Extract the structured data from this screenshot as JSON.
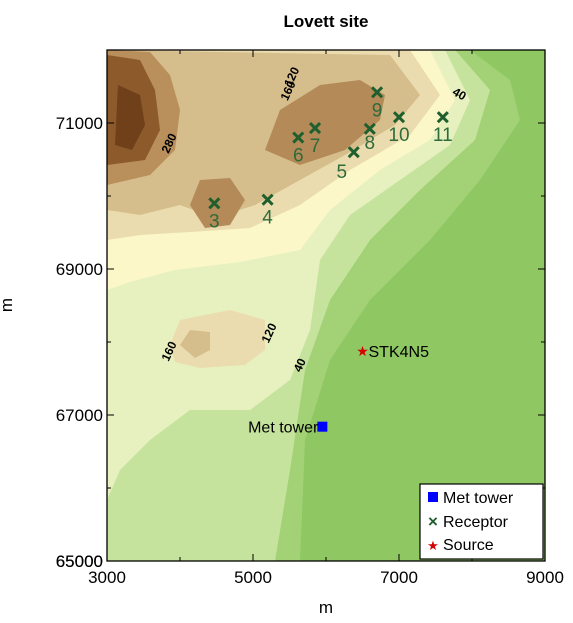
{
  "chart_data": {
    "type": "contour",
    "title": "Lovett site",
    "xlabel": "m",
    "ylabel": "m",
    "xlim": [
      3000,
      9000
    ],
    "ylim": [
      65000,
      72000
    ],
    "xticks": [
      "3000",
      "5000",
      "7000",
      "9000"
    ],
    "yticks": [
      "65000",
      "67000",
      "69000",
      "71000"
    ],
    "contour_labels": [
      {
        "text": "280",
        "x": 3900,
        "y": 70700
      },
      {
        "text": "160",
        "x": 5530,
        "y": 71420
      },
      {
        "text": "120",
        "x": 5580,
        "y": 71610
      },
      {
        "text": "40",
        "x": 7800,
        "y": 71350
      },
      {
        "text": "160",
        "x": 3900,
        "y": 67850
      },
      {
        "text": "120",
        "x": 5270,
        "y": 68100
      },
      {
        "text": "40",
        "x": 5690,
        "y": 67660
      }
    ],
    "receptors": [
      {
        "label": "3",
        "x": 4470,
        "y": 69900
      },
      {
        "label": "4",
        "x": 5200,
        "y": 69950
      },
      {
        "label": "6",
        "x": 5620,
        "y": 70800
      },
      {
        "label": "7",
        "x": 5850,
        "y": 70930
      },
      {
        "label": "5",
        "x": 6380,
        "y": 70600
      },
      {
        "label": "8",
        "x": 6600,
        "y": 70920
      },
      {
        "label": "9",
        "x": 6700,
        "y": 71420
      },
      {
        "label": "10",
        "x": 7000,
        "y": 71080
      },
      {
        "label": "11",
        "x": 7600,
        "y": 71080
      }
    ],
    "met_tower": {
      "label": "Met tower",
      "x": 5950,
      "y": 66840
    },
    "source": {
      "label": "STK4N5",
      "x": 6500,
      "y": 67880
    },
    "legend": {
      "position": "bottom-right",
      "entries": [
        {
          "label": "Met tower",
          "symbol": "square",
          "color": "#0000ff"
        },
        {
          "label": "Receptor",
          "symbol": "x",
          "color": "#1f5f2e"
        },
        {
          "label": "Source",
          "symbol": "star",
          "color": "#d40000"
        }
      ]
    },
    "colors": {
      "low": "#8fc763",
      "mid_low": "#b9dd8c",
      "mid": "#e7f1bf",
      "high_mid": "#fdfad0",
      "high": "#c7a877",
      "peak": "#7a4a22"
    }
  }
}
